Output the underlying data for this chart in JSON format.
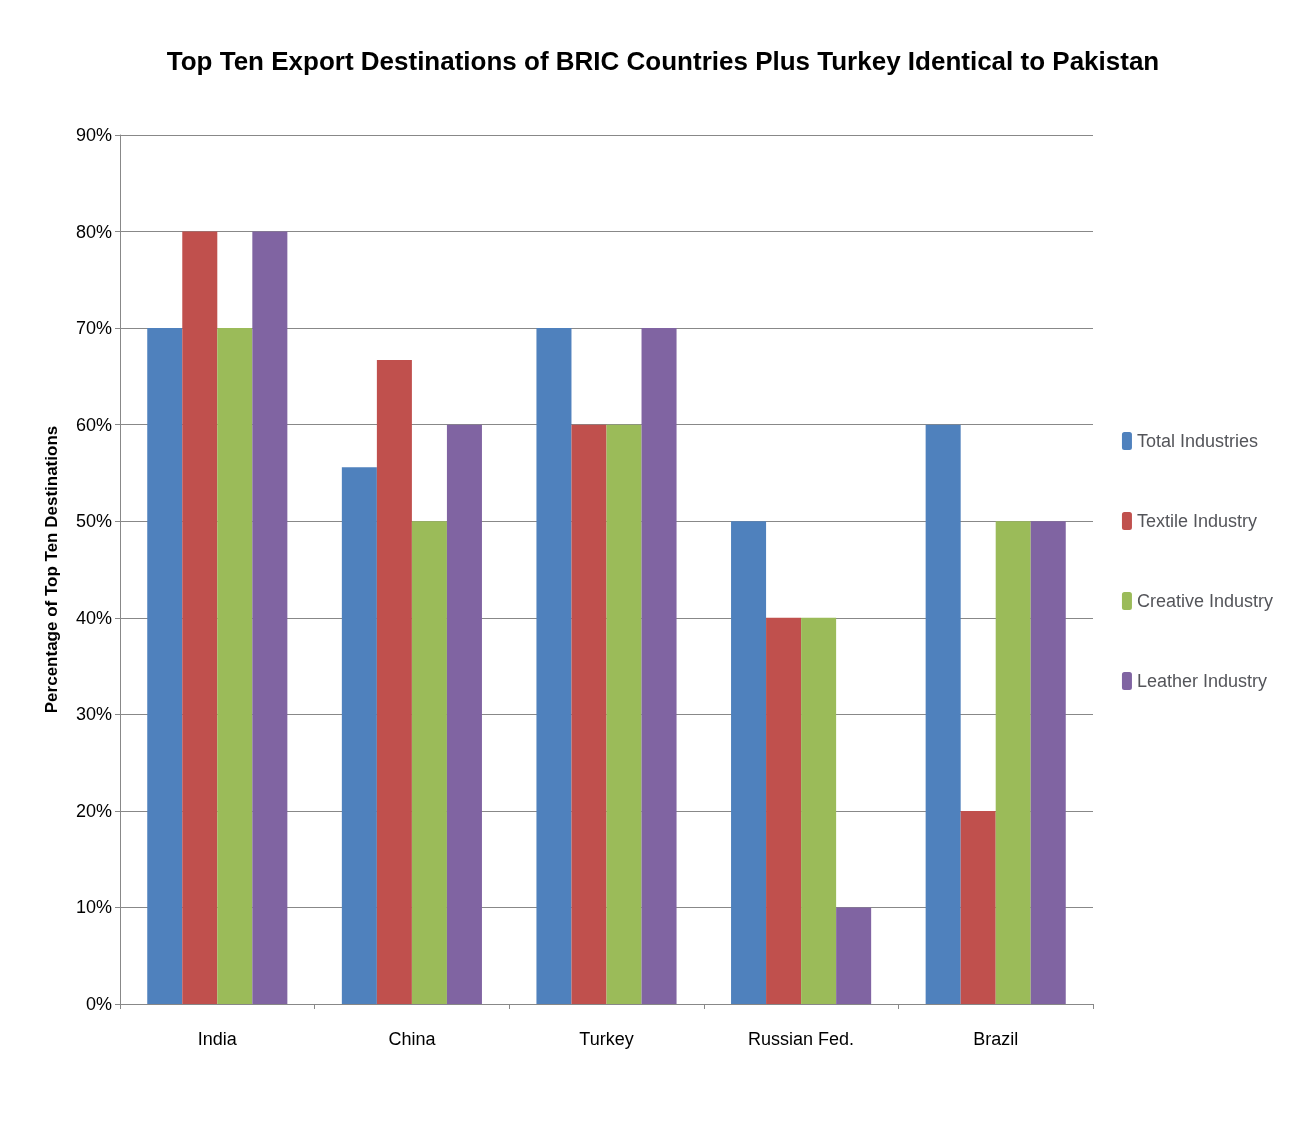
{
  "chart_data": {
    "type": "bar",
    "title": "Top Ten Export Destinations of BRIC Countries Plus Turkey Identical to Pakistan",
    "ylabel": "Percentage of Top Ten Destinations",
    "categories": [
      "India",
      "China",
      "Turkey",
      "Russian Fed.",
      "Brazil"
    ],
    "series": [
      {
        "name": "Total Industries",
        "color": "#4f81bd",
        "values": [
          70,
          55.6,
          70,
          50,
          60
        ]
      },
      {
        "name": "Textile Industry",
        "color": "#c0504d",
        "values": [
          80,
          66.7,
          60,
          40,
          20
        ]
      },
      {
        "name": "Creative Industry",
        "color": "#9bbb59",
        "values": [
          70,
          50,
          60,
          40,
          50
        ]
      },
      {
        "name": "Leather Industry",
        "color": "#8064a2",
        "values": [
          80,
          60,
          70,
          10,
          50
        ]
      }
    ],
    "ylim": [
      0,
      90
    ],
    "yticks": [
      {
        "value": 0,
        "label": "0%"
      },
      {
        "value": 10,
        "label": "10%"
      },
      {
        "value": 20,
        "label": "20%"
      },
      {
        "value": 30,
        "label": "30%"
      },
      {
        "value": 40,
        "label": "40%"
      },
      {
        "value": 50,
        "label": "50%"
      },
      {
        "value": 60,
        "label": "60%"
      },
      {
        "value": 70,
        "label": "70%"
      },
      {
        "value": 80,
        "label": "80%"
      },
      {
        "value": 90,
        "label": "90%"
      }
    ],
    "grid": "y",
    "legend": "right"
  }
}
